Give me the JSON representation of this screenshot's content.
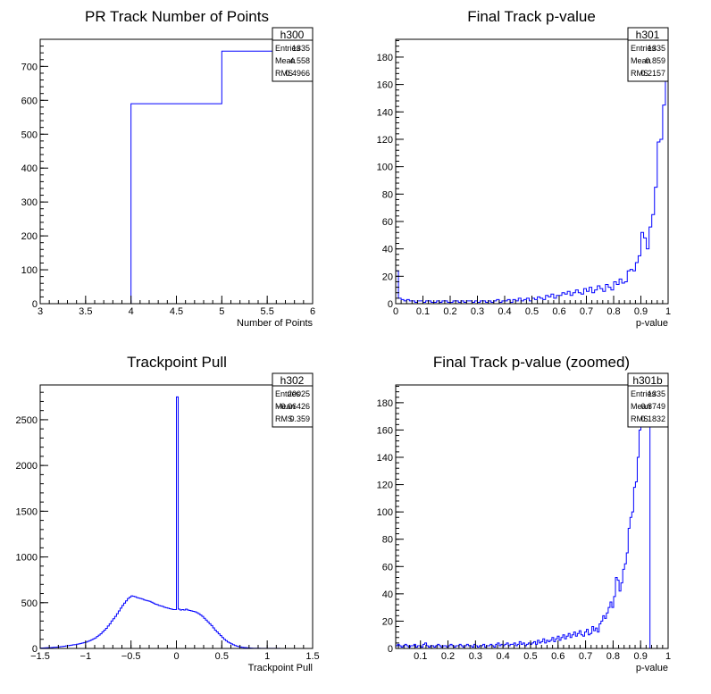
{
  "chart_data": [
    {
      "type": "bar",
      "title": "PR Track Number of Points",
      "xlabel": "Number of Points",
      "ylabel": "",
      "xlim": [
        3,
        6
      ],
      "ylim": [
        0,
        780
      ],
      "xticks": [
        "3",
        "3.5",
        "4",
        "4.5",
        "5",
        "5.5",
        "6"
      ],
      "yticks": [
        "0",
        "100",
        "200",
        "300",
        "400",
        "500",
        "600",
        "700"
      ],
      "series": [
        {
          "values": [
            [
              3,
              4,
              0
            ],
            [
              4,
              5,
              590
            ],
            [
              5,
              6,
              745
            ]
          ]
        }
      ],
      "stats": {
        "name": "h300",
        "rows": [
          [
            "Entries",
            "1335"
          ],
          [
            "Mean",
            "4.558"
          ],
          [
            "RMS",
            "0.4966"
          ]
        ]
      }
    },
    {
      "type": "bar",
      "title": "Final Track p-value",
      "xlabel": "p-value",
      "ylabel": "",
      "xlim": [
        0,
        1
      ],
      "ylim": [
        0,
        193
      ],
      "xticks": [
        "0",
        "0.1",
        "0.2",
        "0.3",
        "0.4",
        "0.5",
        "0.6",
        "0.7",
        "0.8",
        "0.9",
        "1"
      ],
      "yticks": [
        "0",
        "20",
        "40",
        "60",
        "80",
        "100",
        "120",
        "140",
        "160",
        "180"
      ],
      "bin_width": 0.01,
      "values": [
        24,
        4,
        3,
        2,
        3,
        2,
        2,
        1,
        2,
        2,
        1,
        2,
        2,
        1,
        1,
        2,
        1,
        2,
        2,
        1,
        1,
        2,
        2,
        1,
        2,
        1,
        2,
        2,
        1,
        2,
        1,
        2,
        2,
        1,
        2,
        1,
        2,
        3,
        1,
        2,
        2,
        3,
        1,
        3,
        2,
        4,
        2,
        3,
        4,
        2,
        4,
        3,
        5,
        4,
        3,
        6,
        5,
        7,
        4,
        6,
        6,
        8,
        7,
        9,
        6,
        8,
        10,
        8,
        7,
        11,
        9,
        12,
        8,
        10,
        13,
        11,
        9,
        14,
        12,
        10,
        16,
        14,
        18,
        15,
        16,
        24,
        25,
        24,
        30,
        35,
        52,
        48,
        40,
        56,
        65,
        85,
        118,
        120,
        145,
        165
      ],
      "stats": {
        "name": "h301",
        "rows": [
          [
            "Entries",
            "1335"
          ],
          [
            "Mean",
            "0.859"
          ],
          [
            "RMS",
            "0.2157"
          ]
        ]
      }
    },
    {
      "type": "bar",
      "title": "Trackpoint Pull",
      "xlabel": "Trackpoint Pull",
      "ylabel": "",
      "xlim": [
        -1.5,
        1.5
      ],
      "ylim": [
        0,
        2880
      ],
      "xticks": [
        "−1.5",
        "−1",
        "−0.5",
        "0",
        "0.5",
        "1",
        "1.5"
      ],
      "yticks": [
        "0",
        "500",
        "1000",
        "1500",
        "2000",
        "2500"
      ],
      "bin_width": 0.02,
      "values": [
        5,
        5,
        6,
        7,
        8,
        9,
        10,
        12,
        14,
        15,
        17,
        20,
        22,
        25,
        28,
        30,
        33,
        36,
        40,
        42,
        46,
        50,
        55,
        60,
        65,
        70,
        78,
        85,
        95,
        105,
        115,
        130,
        145,
        160,
        180,
        200,
        220,
        245,
        270,
        300,
        325,
        350,
        380,
        410,
        440,
        470,
        495,
        520,
        545,
        560,
        575,
        570,
        565,
        555,
        550,
        545,
        540,
        530,
        525,
        520,
        515,
        505,
        495,
        485,
        480,
        470,
        465,
        460,
        450,
        445,
        440,
        435,
        430,
        425,
        425,
        2750,
        430,
        420,
        425,
        420,
        430,
        420,
        415,
        410,
        405,
        400,
        390,
        380,
        365,
        350,
        330,
        310,
        290,
        270,
        250,
        225,
        200,
        180,
        160,
        140,
        120,
        100,
        85,
        70,
        60,
        50,
        40,
        32,
        26,
        20,
        16,
        12,
        10,
        8,
        6,
        5,
        4,
        3,
        3,
        2,
        2,
        1,
        1,
        1,
        1,
        1,
        1,
        1,
        1,
        1,
        1,
        1,
        0,
        0,
        0,
        0,
        0,
        0,
        0,
        0,
        0,
        0,
        0,
        0,
        0,
        0,
        0,
        0,
        0,
        0
      ],
      "stats": {
        "name": "h302",
        "rows": [
          [
            "Entries",
            "20025"
          ],
          [
            "Mean",
            "−0.06426"
          ],
          [
            "RMS",
            "0.359"
          ]
        ]
      }
    },
    {
      "type": "bar",
      "title": "Final Track p-value (zoomed)",
      "xlabel": "p-value",
      "ylabel": "",
      "xlim": [
        0.01,
        1
      ],
      "ylim": [
        0,
        193
      ],
      "xticks": [
        "0.1",
        "0.2",
        "0.3",
        "0.4",
        "0.5",
        "0.6",
        "0.7",
        "0.8",
        "0.9",
        "1"
      ],
      "xtick_values": [
        0.1,
        0.2,
        0.3,
        0.4,
        0.5,
        0.6,
        0.7,
        0.8,
        0.9,
        1.0
      ],
      "yticks": [
        "0",
        "20",
        "40",
        "60",
        "80",
        "100",
        "120",
        "140",
        "160",
        "180"
      ],
      "bin_width": 0.0066,
      "values": [
        2,
        3,
        2,
        1,
        2,
        3,
        2,
        1,
        2,
        2,
        3,
        1,
        2,
        2,
        1,
        3,
        4,
        2,
        1,
        2,
        2,
        1,
        2,
        3,
        2,
        1,
        2,
        2,
        1,
        2,
        3,
        2,
        1,
        2,
        2,
        3,
        2,
        1,
        2,
        3,
        2,
        2,
        1,
        3,
        2,
        1,
        2,
        2,
        3,
        1,
        2,
        2,
        3,
        2,
        1,
        3,
        4,
        2,
        3,
        2,
        3,
        4,
        2,
        3,
        3,
        4,
        2,
        3,
        5,
        3,
        4,
        2,
        3,
        4,
        3,
        4,
        5,
        3,
        6,
        4,
        5,
        7,
        4,
        6,
        5,
        6,
        8,
        5,
        7,
        9,
        6,
        8,
        10,
        7,
        9,
        11,
        8,
        10,
        12,
        9,
        11,
        13,
        10,
        9,
        12,
        14,
        10,
        11,
        16,
        13,
        15,
        12,
        18,
        20,
        24,
        22,
        26,
        30,
        34,
        30,
        38,
        52,
        50,
        42,
        48,
        58,
        62,
        70,
        88,
        96,
        100,
        118,
        122,
        140,
        160,
        170,
        175,
        185,
        190,
        192
      ],
      "stats": {
        "name": "h301b",
        "rows": [
          [
            "Entries",
            "1335"
          ],
          [
            "Mean",
            "0.8749"
          ],
          [
            "RMS",
            "0.1832"
          ]
        ]
      }
    }
  ]
}
